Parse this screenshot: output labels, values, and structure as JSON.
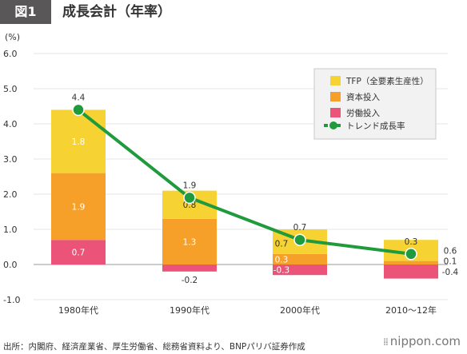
{
  "header": {
    "figure_label": "図1",
    "title": "成長会計（年率）"
  },
  "source": "出所：内閣府、経済産業省、厚生労働省、総務省資料より、BNPパリバ証券作成",
  "logo": {
    "text": "nippon.com",
    "dots": "⁞⁞"
  },
  "colors": {
    "tfp": "#f7d233",
    "capital": "#f6a02a",
    "labor": "#ec5378",
    "trend": "#1f9a3c",
    "grid": "#e5e5e5",
    "axis": "#999999"
  },
  "chart_data": {
    "type": "bar",
    "stacked": true,
    "ylabel": "(%)",
    "ylim": [
      -1.0,
      6.0
    ],
    "yticks": [
      "6.0",
      "5.0",
      "4.0",
      "3.0",
      "2.0",
      "1.0",
      "0.0",
      "-1.0"
    ],
    "ytick_values": [
      6,
      5,
      4,
      3,
      2,
      1,
      0,
      -1
    ],
    "categories": [
      "1980年代",
      "1990年代",
      "2000年代",
      "2010～12年"
    ],
    "series": [
      {
        "name": "TFP（全要素生産性）",
        "key": "tfp",
        "values": [
          1.8,
          0.8,
          0.7,
          0.6
        ],
        "labels": [
          "1.8",
          "0.8",
          "0.7",
          "0.6"
        ]
      },
      {
        "name": "資本投入",
        "key": "capital",
        "values": [
          1.9,
          1.3,
          0.3,
          0.1
        ],
        "labels": [
          "1.9",
          "1.3",
          "0.3",
          "0.1"
        ]
      },
      {
        "name": "労働投入",
        "key": "labor",
        "values": [
          0.7,
          -0.2,
          -0.3,
          -0.4
        ],
        "labels": [
          "0.7",
          "-0.2",
          "-0.3",
          "-0.4"
        ]
      }
    ],
    "trend": {
      "name": "トレンド成長率",
      "values": [
        4.4,
        1.9,
        0.7,
        0.3
      ],
      "labels": [
        "4.4",
        "1.9",
        "0.7",
        "0.3"
      ]
    },
    "legend": {
      "position": "top-right",
      "items": [
        "TFP（全要素生産性）",
        "資本投入",
        "労働投入",
        "トレンド成長率"
      ]
    },
    "grid": true
  }
}
